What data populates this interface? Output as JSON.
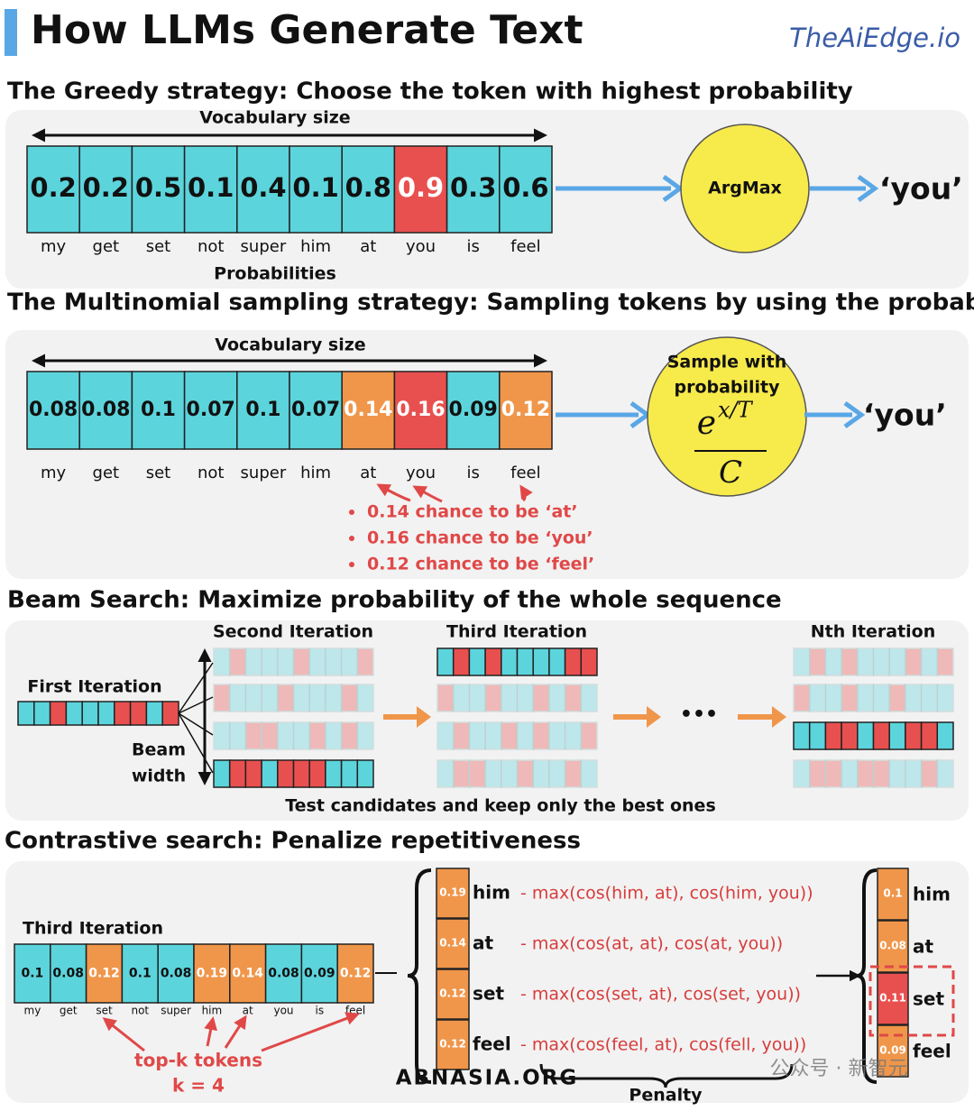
{
  "header": {
    "title": "How LLMs Generate Text",
    "brand": "TheAiEdge.io"
  },
  "greedy": {
    "title": "The Greedy strategy: Choose the token with highest probability",
    "axis_label": "Vocabulary size",
    "bottom_label": "Probabilities",
    "tokens": [
      "my",
      "get",
      "set",
      "not",
      "super",
      "him",
      "at",
      "you",
      "is",
      "feel"
    ],
    "probs": [
      "0.2",
      "0.2",
      "0.5",
      "0.1",
      "0.4",
      "0.1",
      "0.8",
      "0.9",
      "0.3",
      "0.6"
    ],
    "colors": [
      "#5cd4dc",
      "#5cd4dc",
      "#5cd4dc",
      "#5cd4dc",
      "#5cd4dc",
      "#5cd4dc",
      "#5cd4dc",
      "#e8504f",
      "#5cd4dc",
      "#5cd4dc"
    ],
    "operator": "ArgMax",
    "output": "‘you’"
  },
  "multinomial": {
    "title": "The Multinomial sampling strategy: Sampling tokens by using the probability",
    "axis_label": "Vocabulary size",
    "tokens": [
      "my",
      "get",
      "set",
      "not",
      "super",
      "him",
      "at",
      "you",
      "is",
      "feel"
    ],
    "probs": [
      "0.08",
      "0.08",
      "0.1",
      "0.07",
      "0.1",
      "0.07",
      "0.14",
      "0.16",
      "0.09",
      "0.12"
    ],
    "colors": [
      "#5cd4dc",
      "#5cd4dc",
      "#5cd4dc",
      "#5cd4dc",
      "#5cd4dc",
      "#5cd4dc",
      "#f0964a",
      "#e8504f",
      "#5cd4dc",
      "#f0964a"
    ],
    "operator_lines": [
      "Sample with",
      "probability"
    ],
    "formula": {
      "base": "e",
      "exponent": "x/T",
      "denominator": "C"
    },
    "output": "‘you’",
    "notes": [
      "0.14 chance to be ‘at’",
      "0.16 chance to be ‘you’",
      "0.12 chance to be ‘feel’"
    ]
  },
  "beam": {
    "title": "Beam Search: Maximize probability of the whole sequence",
    "first": "First Iteration",
    "second": "Second Iteration",
    "third": "Third Iteration",
    "nth": "Nth Iteration",
    "beam_width_lines": [
      "Beam",
      "width"
    ],
    "ellipsis": "•••",
    "caption": "Test candidates and keep only the best ones"
  },
  "contrastive": {
    "title": "Contrastive search: Penalize repetitiveness",
    "label": "Third Iteration",
    "tokens": [
      "my",
      "get",
      "set",
      "not",
      "super",
      "him",
      "at",
      "you",
      "is",
      "feel"
    ],
    "probs": [
      "0.1",
      "0.08",
      "0.12",
      "0.1",
      "0.08",
      "0.19",
      "0.14",
      "0.08",
      "0.09",
      "0.12"
    ],
    "colors": [
      "#5cd4dc",
      "#5cd4dc",
      "#f0964a",
      "#5cd4dc",
      "#5cd4dc",
      "#f0964a",
      "#f0964a",
      "#5cd4dc",
      "#5cd4dc",
      "#f0964a"
    ],
    "topk_label": "top-k tokens",
    "k": "k = 4",
    "candidates": [
      {
        "prob": "0.19",
        "token": "him",
        "penalty": "- max(cos(him, at), cos(him, you))",
        "color": "#f0964a"
      },
      {
        "prob": "0.14",
        "token": "at",
        "penalty": "- max(cos(at, at), cos(at, you))",
        "color": "#f0964a"
      },
      {
        "prob": "0.12",
        "token": "set",
        "penalty": "- max(cos(set, at), cos(set, you))",
        "color": "#f0964a"
      },
      {
        "prob": "0.12",
        "token": "feel",
        "penalty": "- max(cos(feel, at), cos(fell, you))",
        "color": "#f0964a"
      }
    ],
    "penalty_label": "Penalty",
    "results": [
      {
        "prob": "0.1",
        "token": "him",
        "color": "#f0964a"
      },
      {
        "prob": "0.08",
        "token": "at",
        "color": "#f0964a"
      },
      {
        "prob": "0.11",
        "token": "set",
        "color": "#e8504f"
      },
      {
        "prob": "0.09",
        "token": "feel",
        "color": "#f0964a"
      }
    ]
  },
  "watermarks": [
    "ABNASIA.ORG",
    "公众号 · 新智元"
  ]
}
